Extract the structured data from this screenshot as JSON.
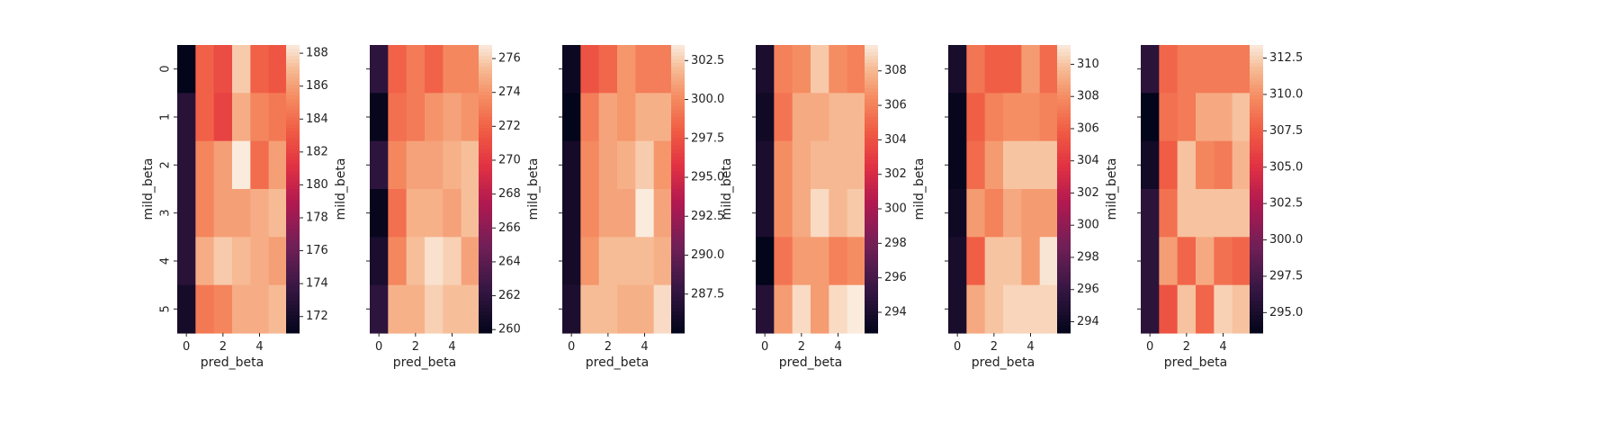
{
  "chart_data": [
    {
      "type": "heatmap",
      "xlabel": "pred_beta",
      "ylabel": "mild_beta",
      "x_ticks": [
        "0",
        "2",
        "4"
      ],
      "y_ticks": [
        "0",
        "1",
        "2",
        "3",
        "4",
        "5"
      ],
      "colorbar_ticks": [
        "172",
        "174",
        "176",
        "178",
        "180",
        "182",
        "184",
        "186",
        "188"
      ],
      "vmin": 171,
      "vmax": 188.5,
      "values": [
        [
          171,
          183.5,
          182.5,
          187.5,
          183.5,
          183.0
        ],
        [
          173,
          183.5,
          182.0,
          186.5,
          185.0,
          184.5
        ],
        [
          173,
          185.0,
          186.0,
          188.5,
          184.0,
          186.0
        ],
        [
          173,
          185.0,
          186.0,
          186.0,
          186.5,
          187.0
        ],
        [
          173,
          186.5,
          187.5,
          187.0,
          186.5,
          186.0
        ],
        [
          172,
          184.5,
          185.0,
          186.5,
          186.5,
          187.0
        ]
      ]
    },
    {
      "type": "heatmap",
      "xlabel": "pred_beta",
      "ylabel": "mild_beta",
      "x_ticks": [
        "0",
        "2",
        "4"
      ],
      "y_ticks": [],
      "colorbar_ticks": [
        "260",
        "262",
        "264",
        "266",
        "268",
        "270",
        "272",
        "274",
        "276"
      ],
      "vmin": 259.8,
      "vmax": 276.8,
      "values": [
        [
          262,
          272.0,
          273.0,
          272.0,
          273.5,
          273.5
        ],
        [
          260,
          272.5,
          273.0,
          274.0,
          274.5,
          274.0
        ],
        [
          262,
          273.5,
          274.5,
          274.5,
          275.0,
          275.5
        ],
        [
          260,
          272.5,
          275.0,
          275.0,
          274.5,
          275.5
        ],
        [
          261,
          273.5,
          275.5,
          276.5,
          276.0,
          274.5
        ],
        [
          262,
          275.0,
          275.0,
          276.0,
          275.5,
          275.5
        ]
      ]
    },
    {
      "type": "heatmap",
      "xlabel": "pred_beta",
      "ylabel": "mild_beta",
      "x_ticks": [
        "0",
        "2",
        "4"
      ],
      "y_ticks": [],
      "colorbar_ticks": [
        "287.5",
        "290.0",
        "292.5",
        "295.0",
        "297.5",
        "300.0",
        "302.5"
      ],
      "vmin": 285.0,
      "vmax": 303.5,
      "values": [
        [
          285.5,
          297.5,
          298.5,
          300.5,
          299.5,
          299.5
        ],
        [
          285.0,
          299.5,
          301.0,
          300.5,
          301.5,
          301.5
        ],
        [
          286.0,
          300.0,
          301.0,
          301.5,
          302.5,
          300.5
        ],
        [
          286.0,
          300.0,
          301.0,
          301.0,
          303.5,
          301.0
        ],
        [
          286.0,
          300.5,
          302.0,
          302.0,
          302.0,
          301.5
        ],
        [
          286.5,
          302.0,
          302.0,
          301.5,
          301.5,
          303.0
        ]
      ]
    },
    {
      "type": "heatmap",
      "xlabel": "pred_beta",
      "ylabel": "mild_beta",
      "x_ticks": [
        "0",
        "2",
        "4"
      ],
      "y_ticks": [],
      "colorbar_ticks": [
        "294",
        "296",
        "298",
        "300",
        "302",
        "304",
        "306",
        "308"
      ],
      "vmin": 292.8,
      "vmax": 309.5,
      "values": [
        [
          294.0,
          306.0,
          306.5,
          308.5,
          306.5,
          306.0
        ],
        [
          293.5,
          305.5,
          307.5,
          307.5,
          308.0,
          308.0
        ],
        [
          294.0,
          306.5,
          307.5,
          308.0,
          308.0,
          308.0
        ],
        [
          294.0,
          306.5,
          307.5,
          309.0,
          308.0,
          308.5
        ],
        [
          292.8,
          305.5,
          307.0,
          307.0,
          306.0,
          306.5
        ],
        [
          294.5,
          307.0,
          309.0,
          307.0,
          309.0,
          309.5
        ]
      ]
    },
    {
      "type": "heatmap",
      "xlabel": "pred_beta",
      "ylabel": "mild_beta",
      "x_ticks": [
        "0",
        "2",
        "4"
      ],
      "y_ticks": [],
      "colorbar_ticks": [
        "294",
        "296",
        "298",
        "300",
        "302",
        "304",
        "306",
        "308",
        "310"
      ],
      "vmin": 293.3,
      "vmax": 311.2,
      "values": [
        [
          294.5,
          307.0,
          306.0,
          306.0,
          308.5,
          306.5
        ],
        [
          293.5,
          306.0,
          307.5,
          308.0,
          308.0,
          307.5
        ],
        [
          293.5,
          306.5,
          308.5,
          310.0,
          310.0,
          310.0
        ],
        [
          294.0,
          308.5,
          307.5,
          309.0,
          308.5,
          308.5
        ],
        [
          294.5,
          306.0,
          310.0,
          310.0,
          308.5,
          311.0
        ],
        [
          294.5,
          309.0,
          310.0,
          310.5,
          310.5,
          310.5
        ]
      ]
    },
    {
      "type": "heatmap",
      "xlabel": "pred_beta",
      "ylabel": "mild_beta",
      "x_ticks": [
        "0",
        "2",
        "4"
      ],
      "y_ticks": [],
      "colorbar_ticks": [
        "295.0",
        "297.5",
        "300.0",
        "302.5",
        "305.0",
        "307.5",
        "310.0",
        "312.5"
      ],
      "vmin": 293.6,
      "vmax": 313.4,
      "values": [
        [
          296.0,
          308.0,
          309.0,
          309.0,
          309.0,
          309.0
        ],
        [
          293.6,
          308.5,
          309.0,
          311.0,
          311.0,
          312.0
        ],
        [
          294.5,
          307.5,
          312.0,
          309.5,
          309.0,
          311.5
        ],
        [
          296.0,
          308.5,
          312.0,
          312.0,
          312.0,
          312.0
        ],
        [
          296.0,
          310.5,
          308.0,
          311.0,
          308.5,
          308.0
        ],
        [
          296.0,
          307.0,
          312.0,
          308.0,
          312.5,
          312.0
        ]
      ]
    }
  ]
}
